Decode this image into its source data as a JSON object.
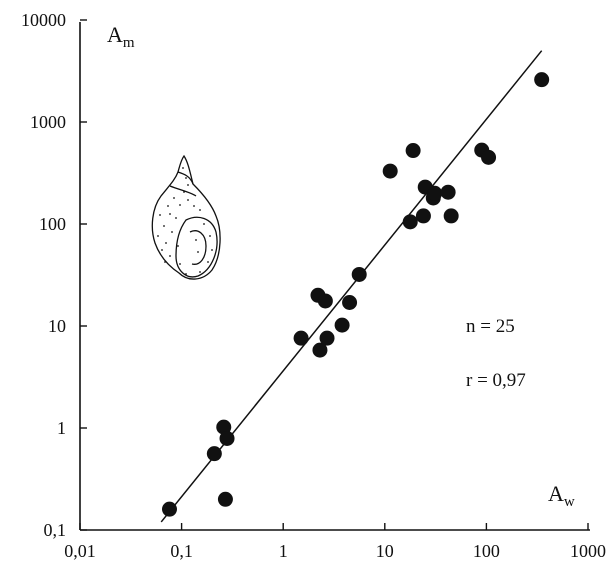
{
  "chart_data": {
    "type": "scatter",
    "title": "",
    "xlabel": {
      "main": "A",
      "sub": "w"
    },
    "ylabel": {
      "main": "A",
      "sub": "m"
    },
    "x_scale": "log",
    "y_scale": "log",
    "xlim": [
      0.01,
      1000
    ],
    "ylim": [
      0.1,
      10000
    ],
    "x_ticks": [
      0.01,
      0.1,
      1,
      10,
      100,
      1000
    ],
    "x_tick_labels": [
      "0,01",
      "0,1",
      "1",
      "10",
      "100",
      "1000"
    ],
    "y_ticks": [
      0.1,
      1,
      10,
      100,
      1000,
      10000
    ],
    "y_tick_labels": [
      "0,1",
      "1",
      "10",
      "100",
      "1000",
      "10000"
    ],
    "grid": false,
    "annotations": [
      "n = 25",
      "r = 0,97"
    ],
    "illustration": "snail-shell",
    "fit_line": {
      "x": [
        0.063,
        350
      ],
      "y": [
        0.12,
        5000
      ]
    },
    "marker_color": "#111111",
    "points": [
      {
        "x": 0.076,
        "y": 0.16
      },
      {
        "x": 0.21,
        "y": 0.56
      },
      {
        "x": 0.26,
        "y": 1.02
      },
      {
        "x": 0.28,
        "y": 0.79
      },
      {
        "x": 0.27,
        "y": 0.2
      },
      {
        "x": 1.5,
        "y": 7.6
      },
      {
        "x": 2.2,
        "y": 20
      },
      {
        "x": 2.3,
        "y": 5.8
      },
      {
        "x": 2.6,
        "y": 17.6
      },
      {
        "x": 2.7,
        "y": 7.6
      },
      {
        "x": 3.8,
        "y": 10.2
      },
      {
        "x": 4.5,
        "y": 17
      },
      {
        "x": 5.6,
        "y": 32
      },
      {
        "x": 11.3,
        "y": 330
      },
      {
        "x": 17.8,
        "y": 105
      },
      {
        "x": 19,
        "y": 525
      },
      {
        "x": 24,
        "y": 120
      },
      {
        "x": 25,
        "y": 230
      },
      {
        "x": 30,
        "y": 180
      },
      {
        "x": 31,
        "y": 200
      },
      {
        "x": 42,
        "y": 205
      },
      {
        "x": 45,
        "y": 120
      },
      {
        "x": 90,
        "y": 530
      },
      {
        "x": 105,
        "y": 450
      },
      {
        "x": 350,
        "y": 2600
      }
    ]
  }
}
